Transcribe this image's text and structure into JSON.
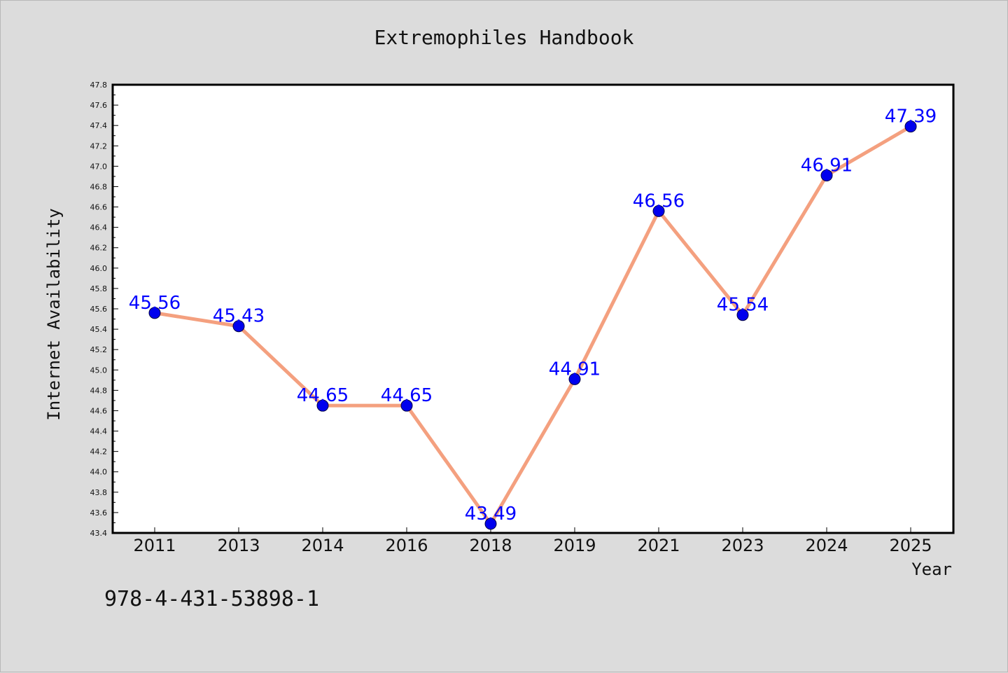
{
  "page": {
    "isbn": "978-4-431-53898-1"
  },
  "colors": {
    "background": "#dcdcdc",
    "plot_background": "#ffffff",
    "line": "#f4a07f",
    "marker": "#0000ee",
    "label": "#0000ff"
  },
  "chart_data": {
    "type": "line",
    "title": "Extremophiles Handbook",
    "xlabel": "Year",
    "ylabel": "Internet Availability",
    "categories": [
      "2011",
      "2013",
      "2014",
      "2016",
      "2018",
      "2019",
      "2021",
      "2023",
      "2024",
      "2025"
    ],
    "series": [
      {
        "values": [
          45.56,
          45.43,
          44.65,
          44.65,
          43.49,
          44.91,
          46.56,
          45.54,
          46.91,
          47.39
        ],
        "labels": [
          "45.56",
          "45.43",
          "44.65",
          "44.65",
          "43.49",
          "44.91",
          "46.56",
          "45.54",
          "46.91",
          "47.39"
        ]
      }
    ],
    "ylim": [
      43.4,
      47.8
    ],
    "yticks": [
      "43.4",
      "43.6",
      "43.8",
      "44.0",
      "44.2",
      "44.4",
      "44.6",
      "44.8",
      "45.0",
      "45.2",
      "45.4",
      "45.6",
      "45.8",
      "46.0",
      "46.2",
      "46.4",
      "46.6",
      "46.8",
      "47.0",
      "47.2",
      "47.4",
      "47.6",
      "47.8"
    ],
    "grid": false,
    "legend": "none"
  }
}
